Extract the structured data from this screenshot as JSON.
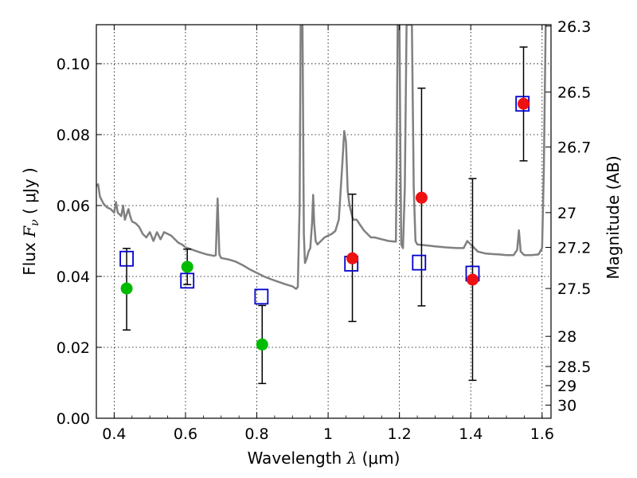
{
  "chart_data": {
    "type": "scatter",
    "title": "",
    "xlabel": "Wavelength  λ (μm)",
    "ylabel": "Flux  F_ν  ( μJy )",
    "ylabel_parts": {
      "pre": "Flux  ",
      "var": "F",
      "sub": "ν",
      "post": "  ( μJy )"
    },
    "xlabel_parts": {
      "pre": "Wavelength  ",
      "var": "λ",
      "post": " (μm)"
    },
    "y2label": "Magnitude (AB)",
    "xlim": [
      0.35,
      1.625
    ],
    "ylim": [
      0.0,
      0.111
    ],
    "grid": true,
    "x_ticks": [
      0.4,
      0.6,
      0.8,
      1.0,
      1.2,
      1.4,
      1.6
    ],
    "x_tick_labels": [
      "0.4",
      "0.6",
      "0.8",
      "1",
      "1.2",
      "1.4",
      "1.6"
    ],
    "y_ticks": [
      0.0,
      0.02,
      0.04,
      0.06,
      0.08,
      0.1
    ],
    "y_tick_labels": [
      "0.00",
      "0.02",
      "0.04",
      "0.06",
      "0.08",
      "0.10"
    ],
    "y2_ticks": [
      {
        "label": "26.3",
        "flux": 0.1106
      },
      {
        "label": "26.5",
        "flux": 0.092
      },
      {
        "label": "26.7",
        "flux": 0.0765
      },
      {
        "label": "27",
        "flux": 0.058
      },
      {
        "label": "27.2",
        "flux": 0.0482
      },
      {
        "label": "27.5",
        "flux": 0.0366
      },
      {
        "label": "28",
        "flux": 0.0231
      },
      {
        "label": "28.5",
        "flux": 0.0146
      },
      {
        "label": "29",
        "flux": 0.0092
      },
      {
        "label": "30",
        "flux": 0.0037
      }
    ],
    "series": [
      {
        "marker": "open-square",
        "color": "#0000cc",
        "points": [
          {
            "x": 0.435,
            "y": 0.045
          },
          {
            "x": 0.605,
            "y": 0.0388
          },
          {
            "x": 0.813,
            "y": 0.0343
          },
          {
            "x": 1.065,
            "y": 0.0436
          },
          {
            "x": 1.255,
            "y": 0.0439
          },
          {
            "x": 1.405,
            "y": 0.0408
          },
          {
            "x": 1.545,
            "y": 0.0887
          }
        ]
      },
      {
        "marker": "filled-circle",
        "color": "#00bb00",
        "points": [
          {
            "x": 0.435,
            "y": 0.0366,
            "yerr_low": 0.0249,
            "yerr_high": 0.0479
          },
          {
            "x": 0.605,
            "y": 0.0427,
            "yerr_low": 0.0377,
            "yerr_high": 0.0477
          },
          {
            "x": 0.815,
            "y": 0.0208,
            "yerr_low": 0.0098,
            "yerr_high": 0.0318
          }
        ]
      },
      {
        "marker": "filled-circle",
        "color": "#ee1111",
        "points": [
          {
            "x": 1.068,
            "y": 0.0451,
            "yerr_low": 0.0273,
            "yerr_high": 0.0632
          },
          {
            "x": 1.262,
            "y": 0.0622,
            "yerr_low": 0.0317,
            "yerr_high": 0.0931
          },
          {
            "x": 1.405,
            "y": 0.0391,
            "yerr_low": 0.0107,
            "yerr_high": 0.0676
          },
          {
            "x": 1.548,
            "y": 0.0887,
            "yerr_low": 0.0726,
            "yerr_high": 0.1047
          }
        ]
      }
    ],
    "model_spectrum": {
      "color": "#808080",
      "points": [
        [
          0.35,
          0.0655
        ],
        [
          0.355,
          0.066
        ],
        [
          0.36,
          0.0625
        ],
        [
          0.37,
          0.0605
        ],
        [
          0.38,
          0.0595
        ],
        [
          0.39,
          0.059
        ],
        [
          0.4,
          0.058
        ],
        [
          0.405,
          0.061
        ],
        [
          0.41,
          0.058
        ],
        [
          0.42,
          0.057
        ],
        [
          0.425,
          0.06
        ],
        [
          0.43,
          0.056
        ],
        [
          0.44,
          0.059
        ],
        [
          0.445,
          0.057
        ],
        [
          0.45,
          0.0555
        ],
        [
          0.46,
          0.055
        ],
        [
          0.47,
          0.054
        ],
        [
          0.48,
          0.052
        ],
        [
          0.49,
          0.051
        ],
        [
          0.5,
          0.0525
        ],
        [
          0.51,
          0.05
        ],
        [
          0.52,
          0.0525
        ],
        [
          0.53,
          0.0505
        ],
        [
          0.54,
          0.0525
        ],
        [
          0.55,
          0.052
        ],
        [
          0.56,
          0.0515
        ],
        [
          0.57,
          0.0505
        ],
        [
          0.58,
          0.0495
        ],
        [
          0.59,
          0.049
        ],
        [
          0.6,
          0.0482
        ],
        [
          0.62,
          0.0475
        ],
        [
          0.64,
          0.0468
        ],
        [
          0.66,
          0.0462
        ],
        [
          0.68,
          0.0458
        ],
        [
          0.685,
          0.046
        ],
        [
          0.69,
          0.062
        ],
        [
          0.695,
          0.0462
        ],
        [
          0.7,
          0.0452
        ],
        [
          0.72,
          0.0448
        ],
        [
          0.74,
          0.0442
        ],
        [
          0.76,
          0.0432
        ],
        [
          0.78,
          0.042
        ],
        [
          0.8,
          0.041
        ],
        [
          0.82,
          0.04
        ],
        [
          0.84,
          0.0392
        ],
        [
          0.86,
          0.0385
        ],
        [
          0.88,
          0.0378
        ],
        [
          0.9,
          0.0372
        ],
        [
          0.91,
          0.0365
        ],
        [
          0.915,
          0.037
        ],
        [
          0.92,
          0.06
        ],
        [
          0.923,
          0.111
        ],
        [
          0.928,
          0.111
        ],
        [
          0.932,
          0.052
        ],
        [
          0.935,
          0.0438
        ],
        [
          0.94,
          0.045
        ],
        [
          0.945,
          0.047
        ],
        [
          0.95,
          0.048
        ],
        [
          0.955,
          0.055
        ],
        [
          0.958,
          0.063
        ],
        [
          0.961,
          0.055
        ],
        [
          0.965,
          0.05
        ],
        [
          0.97,
          0.049
        ],
        [
          0.98,
          0.05
        ],
        [
          0.99,
          0.051
        ],
        [
          1.0,
          0.0515
        ],
        [
          1.01,
          0.052
        ],
        [
          1.02,
          0.0528
        ],
        [
          1.03,
          0.056
        ],
        [
          1.04,
          0.072
        ],
        [
          1.045,
          0.081
        ],
        [
          1.05,
          0.078
        ],
        [
          1.055,
          0.064
        ],
        [
          1.06,
          0.06
        ],
        [
          1.07,
          0.056
        ],
        [
          1.08,
          0.056
        ],
        [
          1.09,
          0.0545
        ],
        [
          1.1,
          0.053
        ],
        [
          1.11,
          0.052
        ],
        [
          1.12,
          0.051
        ],
        [
          1.13,
          0.051
        ],
        [
          1.15,
          0.0505
        ],
        [
          1.17,
          0.05
        ],
        [
          1.19,
          0.0498
        ],
        [
          1.192,
          0.07
        ],
        [
          1.195,
          0.111
        ],
        [
          1.2,
          0.111
        ],
        [
          1.203,
          0.07
        ],
        [
          1.205,
          0.049
        ],
        [
          1.21,
          0.048
        ],
        [
          1.215,
          0.065
        ],
        [
          1.22,
          0.111
        ],
        [
          1.235,
          0.111
        ],
        [
          1.24,
          0.065
        ],
        [
          1.245,
          0.05
        ],
        [
          1.25,
          0.049
        ],
        [
          1.27,
          0.0488
        ],
        [
          1.3,
          0.0485
        ],
        [
          1.33,
          0.0482
        ],
        [
          1.36,
          0.048
        ],
        [
          1.38,
          0.048
        ],
        [
          1.39,
          0.05
        ],
        [
          1.4,
          0.049
        ],
        [
          1.42,
          0.047
        ],
        [
          1.44,
          0.0465
        ],
        [
          1.46,
          0.0463
        ],
        [
          1.48,
          0.0462
        ],
        [
          1.5,
          0.046
        ],
        [
          1.52,
          0.046
        ],
        [
          1.53,
          0.0475
        ],
        [
          1.535,
          0.053
        ],
        [
          1.54,
          0.047
        ],
        [
          1.55,
          0.046
        ],
        [
          1.57,
          0.046
        ],
        [
          1.59,
          0.0462
        ],
        [
          1.6,
          0.048
        ],
        [
          1.605,
          0.07
        ],
        [
          1.61,
          0.111
        ]
      ]
    }
  }
}
